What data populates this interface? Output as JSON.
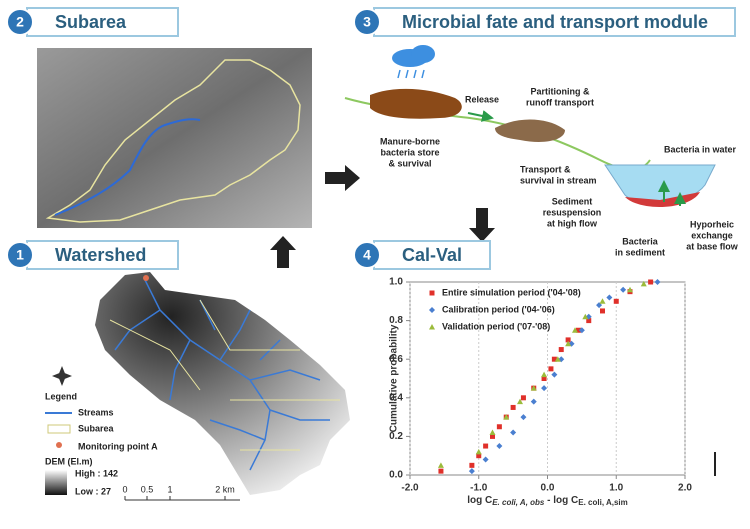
{
  "panels": [
    {
      "number": "2",
      "title": "Subarea"
    },
    {
      "number": "3",
      "title": "Microbial fate and transport module"
    },
    {
      "number": "1",
      "title": "Watershed"
    },
    {
      "number": "4",
      "title": "Cal-Val"
    }
  ],
  "process_labels": {
    "manure": [
      "Manure-borne",
      "bacteria store",
      "& survival"
    ],
    "release": [
      "Release"
    ],
    "partitioning": [
      "Partitioning &",
      "runoff transport"
    ],
    "water": [
      "Bacteria in water"
    ],
    "transport": [
      "Transport &",
      "survival in stream"
    ],
    "resuspension": [
      "Sediment",
      "resuspension",
      "at high flow"
    ],
    "sediment": [
      "Bacteria",
      "in sediment"
    ],
    "hyporheic": [
      "Hyporheic",
      "exchange",
      "at base flow"
    ]
  },
  "legend": {
    "title": "Legend",
    "items": [
      "Streams",
      "Subarea",
      "Monitoring point A"
    ],
    "dem_title": "DEM (El.m)",
    "dem_high": "High : 142",
    "dem_low": "Low : 27",
    "scale": [
      "0",
      "0.5",
      "1",
      "2 km"
    ]
  },
  "chart": {
    "type": "scatter",
    "ylabel": "Cumulative probability",
    "xlabel": [
      "log C",
      "E. coli, A, obs",
      " - log C",
      "E. coli, A,sim"
    ],
    "xlim": [
      -2,
      2
    ],
    "ylim": [
      0,
      1
    ],
    "xticks": [
      {
        "value": -2,
        "label": "-2.0"
      },
      {
        "value": -1,
        "label": "-1.0"
      },
      {
        "value": 0,
        "label": "0.0"
      },
      {
        "value": 1,
        "label": "1.0"
      },
      {
        "value": 2,
        "label": "2.0"
      }
    ],
    "yticks": [
      {
        "value": 0,
        "label": "0.0"
      },
      {
        "value": 0.2,
        "label": "0.2"
      },
      {
        "value": 0.4,
        "label": "0.4"
      },
      {
        "value": 0.6,
        "label": "0.6"
      },
      {
        "value": 0.8,
        "label": "0.8"
      },
      {
        "value": 1,
        "label": "1.0"
      }
    ],
    "grid": "x",
    "series": [
      {
        "name": "Entire simulation period ('04-'08)",
        "color": "#e0302a",
        "marker": "square",
        "x": [
          -1.55,
          -1.1,
          -1.0,
          -0.9,
          -0.8,
          -0.7,
          -0.6,
          -0.5,
          -0.35,
          -0.2,
          -0.05,
          0.05,
          0.1,
          0.2,
          0.3,
          0.45,
          0.6,
          0.8,
          1.0,
          1.2,
          1.5
        ],
        "y": [
          0.02,
          0.05,
          0.1,
          0.15,
          0.2,
          0.25,
          0.3,
          0.35,
          0.4,
          0.45,
          0.5,
          0.55,
          0.6,
          0.65,
          0.7,
          0.75,
          0.8,
          0.85,
          0.9,
          0.95,
          1.0
        ]
      },
      {
        "name": "Calibration period ('04-'06)",
        "color": "#4a7fd0",
        "marker": "diamond",
        "x": [
          -1.1,
          -0.9,
          -0.7,
          -0.5,
          -0.35,
          -0.2,
          -0.05,
          0.1,
          0.2,
          0.35,
          0.5,
          0.6,
          0.75,
          0.9,
          1.1,
          1.6
        ],
        "y": [
          0.02,
          0.08,
          0.15,
          0.22,
          0.3,
          0.38,
          0.45,
          0.52,
          0.6,
          0.68,
          0.75,
          0.82,
          0.88,
          0.92,
          0.96,
          1.0
        ]
      },
      {
        "name": "Validation period ('07-'08)",
        "color": "#9bbb3b",
        "marker": "triangle",
        "x": [
          -1.55,
          -1.0,
          -0.8,
          -0.6,
          -0.4,
          -0.2,
          -0.05,
          0.15,
          0.3,
          0.4,
          0.55,
          0.8,
          1.2,
          1.4
        ],
        "y": [
          0.05,
          0.12,
          0.22,
          0.3,
          0.38,
          0.45,
          0.52,
          0.6,
          0.68,
          0.75,
          0.82,
          0.9,
          0.96,
          0.99
        ]
      }
    ]
  }
}
